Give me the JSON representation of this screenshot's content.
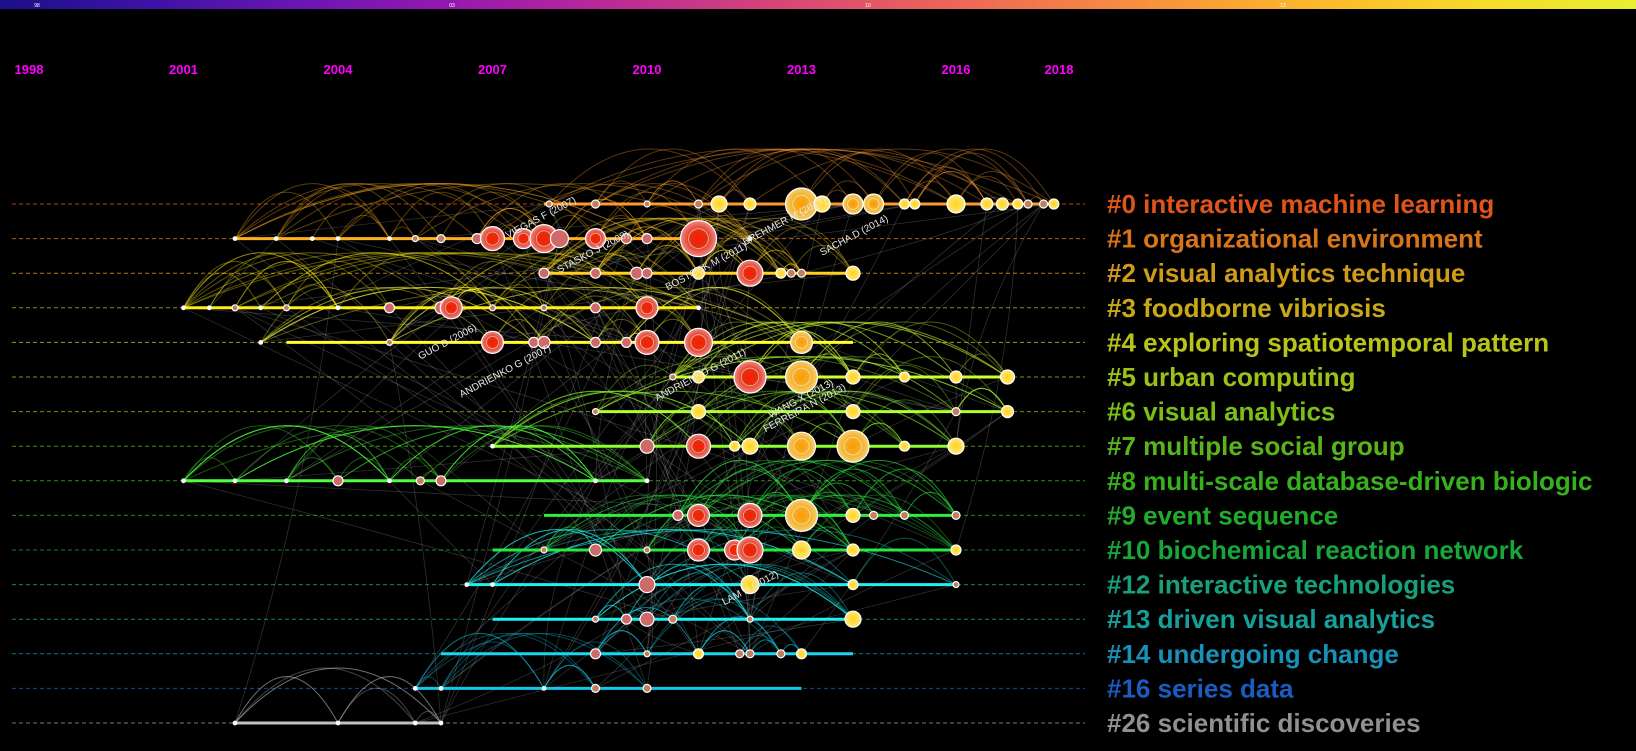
{
  "timeline": {
    "years": [
      "1998",
      "2001",
      "2004",
      "2007",
      "2010",
      "2013",
      "2016",
      "2018"
    ],
    "colorbar": {
      "stops": [
        "#1c0f8a",
        "#3d12a6",
        "#6a16b4",
        "#9418b0",
        "#b8289a",
        "#d0407e",
        "#e65a62",
        "#f3784c",
        "#f99b38",
        "#fbbd2a",
        "#f6dc2a",
        "#e8ef30"
      ],
      "tick_labels": [
        "98",
        "03",
        "10",
        "13"
      ]
    }
  },
  "clusters": [
    {
      "id": "#0",
      "label": "interactive machine learning",
      "color": "#e0541a",
      "line_color": "#ff9a30",
      "start": 2008.0,
      "end": 2017.8,
      "nodes": [
        [
          2008.1,
          3
        ],
        [
          2009,
          4
        ],
        [
          2010,
          3
        ],
        [
          2011,
          4
        ],
        [
          2011.4,
          8
        ],
        [
          2012,
          6
        ],
        [
          2013,
          16
        ],
        [
          2013.4,
          8
        ],
        [
          2014,
          10
        ],
        [
          2014.4,
          10
        ],
        [
          2015,
          5
        ],
        [
          2015.2,
          5
        ],
        [
          2016,
          9
        ],
        [
          2016.6,
          6
        ],
        [
          2016.9,
          6
        ],
        [
          2017.2,
          5
        ],
        [
          2017.4,
          4
        ],
        [
          2017.7,
          4
        ],
        [
          2017.9,
          5
        ]
      ]
    },
    {
      "id": "#1",
      "label": "organizational environment",
      "color": "#d8751a",
      "line_color": "#ffb020",
      "start": 2002.0,
      "end": 2011.0,
      "nodes": [
        [
          2002,
          2
        ],
        [
          2002.8,
          2
        ],
        [
          2003.5,
          2
        ],
        [
          2004,
          2
        ],
        [
          2005,
          2
        ],
        [
          2005.5,
          3
        ],
        [
          2006,
          4
        ],
        [
          2006.7,
          5
        ],
        [
          2007,
          12
        ],
        [
          2007.6,
          10
        ],
        [
          2008,
          14
        ],
        [
          2008.3,
          9
        ],
        [
          2009,
          10
        ],
        [
          2009.6,
          5
        ],
        [
          2010,
          5
        ],
        [
          2011,
          18
        ],
        [
          2012,
          2
        ]
      ]
    },
    {
      "id": "#2",
      "label": "visual analytics technique",
      "color": "#d09a1a",
      "line_color": "#ffd020",
      "start": 2008.0,
      "end": 2014.0,
      "nodes": [
        [
          2008,
          5
        ],
        [
          2009,
          5
        ],
        [
          2009.8,
          6
        ],
        [
          2010,
          5
        ],
        [
          2011,
          6
        ],
        [
          2012,
          13
        ],
        [
          2012.6,
          5
        ],
        [
          2012.8,
          4
        ],
        [
          2013,
          4
        ],
        [
          2014,
          7
        ]
      ]
    },
    {
      "id": "#3",
      "label": "foodborne vibriosis",
      "color": "#c8aa18",
      "line_color": "#ffee10",
      "start": 2001.0,
      "end": 2011.0,
      "nodes": [
        [
          2001,
          2
        ],
        [
          2001.5,
          2
        ],
        [
          2002,
          3
        ],
        [
          2002.5,
          2
        ],
        [
          2003,
          3
        ],
        [
          2004,
          2
        ],
        [
          2005,
          5
        ],
        [
          2006,
          6
        ],
        [
          2006.2,
          11
        ],
        [
          2007,
          3
        ],
        [
          2008,
          3
        ],
        [
          2009,
          5
        ],
        [
          2010,
          11
        ],
        [
          2011,
          2
        ]
      ]
    },
    {
      "id": "#4",
      "label": "exploring spatiotemporal pattern",
      "color": "#b8c418",
      "line_color": "#ffff30",
      "start": 2003.0,
      "end": 2014.0,
      "nodes": [
        [
          2002.5,
          2
        ],
        [
          2005,
          3
        ],
        [
          2007,
          11
        ],
        [
          2007.8,
          5
        ],
        [
          2008,
          6
        ],
        [
          2009,
          5
        ],
        [
          2009.6,
          5
        ],
        [
          2010,
          12
        ],
        [
          2011,
          14
        ],
        [
          2013,
          11
        ]
      ]
    },
    {
      "id": "#5",
      "label": "urban computing",
      "color": "#9cc218",
      "line_color": "#d0ff30",
      "start": 2010.5,
      "end": 2017.0,
      "nodes": [
        [
          2010.5,
          3
        ],
        [
          2011,
          6
        ],
        [
          2012,
          16
        ],
        [
          2013,
          16
        ],
        [
          2014,
          7
        ],
        [
          2015,
          5
        ],
        [
          2016,
          6
        ],
        [
          2017,
          7
        ]
      ]
    },
    {
      "id": "#6",
      "label": "visual analytics",
      "color": "#7cbe18",
      "line_color": "#b0ff30",
      "start": 2009.0,
      "end": 2017.0,
      "nodes": [
        [
          2009,
          3
        ],
        [
          2011,
          7
        ],
        [
          2014,
          7
        ],
        [
          2016,
          4
        ],
        [
          2017,
          6
        ]
      ]
    },
    {
      "id": "#7",
      "label": "multiple social group",
      "color": "#58b41a",
      "line_color": "#90ff30",
      "start": 2007.0,
      "end": 2016.0,
      "nodes": [
        [
          2007,
          2
        ],
        [
          2010,
          7
        ],
        [
          2011,
          12
        ],
        [
          2011.7,
          5
        ],
        [
          2012,
          8
        ],
        [
          2013,
          14
        ],
        [
          2014,
          16
        ],
        [
          2015,
          5
        ],
        [
          2016,
          8
        ]
      ]
    },
    {
      "id": "#8",
      "label": "multi-scale database-driven biologic",
      "color": "#38b01e",
      "line_color": "#50ff40",
      "start": 2001.0,
      "end": 2010.0,
      "nodes": [
        [
          2001,
          2
        ],
        [
          2002,
          2
        ],
        [
          2003,
          2
        ],
        [
          2004,
          5
        ],
        [
          2005,
          2
        ],
        [
          2005.6,
          4
        ],
        [
          2006,
          5
        ],
        [
          2009,
          2
        ],
        [
          2010,
          2
        ]
      ]
    },
    {
      "id": "#9",
      "label": "event sequence",
      "color": "#24aa2a",
      "line_color": "#30ee40",
      "start": 2008.0,
      "end": 2016.0,
      "nodes": [
        [
          2010.6,
          5
        ],
        [
          2011,
          11
        ],
        [
          2012,
          12
        ],
        [
          2013,
          16
        ],
        [
          2014,
          7
        ],
        [
          2014.4,
          4
        ],
        [
          2015,
          4
        ],
        [
          2016,
          4
        ]
      ]
    },
    {
      "id": "#10",
      "label": "biochemical reaction network",
      "color": "#18a63a",
      "line_color": "#28e840",
      "start": 2007.0,
      "end": 2016.0,
      "nodes": [
        [
          2008,
          3
        ],
        [
          2009,
          6
        ],
        [
          2010,
          3
        ],
        [
          2011,
          11
        ],
        [
          2011.7,
          10
        ],
        [
          2012,
          13
        ],
        [
          2013,
          9
        ],
        [
          2014,
          6
        ],
        [
          2016,
          5
        ]
      ]
    },
    {
      "id": "#12",
      "label": "interactive technologies",
      "color": "#18a078",
      "line_color": "#20f0f0",
      "start": 2006.5,
      "end": 2016.0,
      "nodes": [
        [
          2006.5,
          2
        ],
        [
          2007,
          2
        ],
        [
          2010,
          8
        ],
        [
          2012,
          9
        ],
        [
          2014,
          5
        ],
        [
          2016,
          3
        ]
      ]
    },
    {
      "id": "#13",
      "label": "driven visual analytics",
      "color": "#16a09a",
      "line_color": "#20f0f0",
      "start": 2007.0,
      "end": 2014.0,
      "nodes": [
        [
          2009,
          3
        ],
        [
          2009.6,
          5
        ],
        [
          2010,
          7
        ],
        [
          2010.5,
          4
        ],
        [
          2012,
          3
        ],
        [
          2014,
          8
        ]
      ]
    },
    {
      "id": "#14",
      "label": "undergoing change",
      "color": "#1890b8",
      "line_color": "#18d8f0",
      "start": 2006.0,
      "end": 2014.0,
      "nodes": [
        [
          2009,
          5
        ],
        [
          2010,
          3
        ],
        [
          2011,
          5
        ],
        [
          2011.8,
          4
        ],
        [
          2012,
          4
        ],
        [
          2012.6,
          4
        ],
        [
          2013,
          5
        ]
      ]
    },
    {
      "id": "#16",
      "label": "series data",
      "color": "#1a5cc0",
      "line_color": "#10c8e8",
      "start": 2005.5,
      "end": 2013.0,
      "nodes": [
        [
          2005.5,
          2
        ],
        [
          2006,
          2
        ],
        [
          2008,
          2
        ],
        [
          2009,
          4
        ],
        [
          2010,
          4
        ]
      ]
    },
    {
      "id": "#26",
      "label": "scientific discoveries",
      "color": "#909090",
      "line_color": "#c0c0c0",
      "start": 2002.0,
      "end": 2006.0,
      "nodes": [
        [
          2002,
          2
        ],
        [
          2004,
          2
        ],
        [
          2005.5,
          2
        ],
        [
          2006,
          2
        ]
      ]
    }
  ],
  "node_labels": [
    {
      "text": "VIEGAS F (2007)",
      "year": 2007.3,
      "row": 1
    },
    {
      "text": "STASKO J (2008)",
      "year": 2008.3,
      "row": 2
    },
    {
      "text": "BOSTOCK M (2011)",
      "year": 2010.4,
      "row": 2.5
    },
    {
      "text": "BREHMER M (2013)",
      "year": 2011.9,
      "row": 1.2
    },
    {
      "text": "SACHA D (2014)",
      "year": 2013.4,
      "row": 1.5
    },
    {
      "text": "GUO D (2006)",
      "year": 2005.6,
      "row": 4.5
    },
    {
      "text": "ANDRIENKO G (2007)",
      "year": 2006.4,
      "row": 5.6
    },
    {
      "text": "ANDRIENKO G (2011)",
      "year": 2010.2,
      "row": 5.7
    },
    {
      "text": "WANG X (2013)",
      "year": 2012.4,
      "row": 6.2
    },
    {
      "text": "FERREIRA N (2013)",
      "year": 2012.3,
      "row": 6.6
    },
    {
      "text": "LAM H (2012)",
      "year": 2011.5,
      "row": 11.6
    }
  ]
}
